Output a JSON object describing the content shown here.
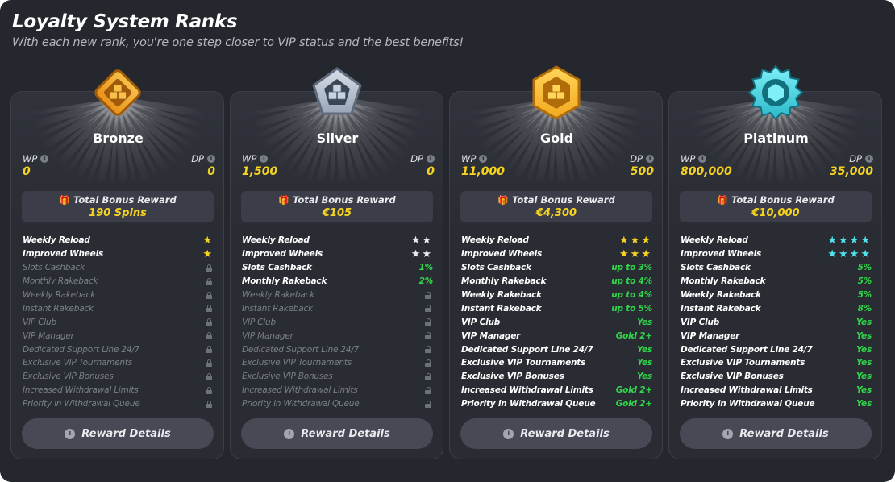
{
  "header": {
    "title": "Loyalty System Ranks",
    "subtitle": "With each new rank, you're one step closer to VIP status and the best benefits!"
  },
  "labels": {
    "wp": "WP",
    "dp": "DP",
    "bonus_title": "Total Bonus Reward",
    "details_button": "Reward Details"
  },
  "benefit_names": [
    "Weekly Reload",
    "Improved Wheels",
    "Slots Cashback",
    "Monthly Rakeback",
    "Weekly Rakeback",
    "Instant Rakeback",
    "VIP Club",
    "VIP Manager",
    "Dedicated Support Line 24/7",
    "Exclusive VIP Tournaments",
    "Exclusive VIP Bonuses",
    "Increased Withdrawal Limits",
    "Priority in Withdrawal Queue"
  ],
  "ranks": [
    {
      "name": "Bronze",
      "icon": "bronze-diamond-badge",
      "colors": {
        "main": "#e8921a",
        "light": "#f7c04a",
        "dark": "#a15a0a"
      },
      "wp": "0",
      "dp": "0",
      "bonus": "190 Spins",
      "star_color": "gold",
      "benefits": [
        {
          "stars": 1
        },
        {
          "stars": 1
        },
        {
          "locked": true
        },
        {
          "locked": true
        },
        {
          "locked": true
        },
        {
          "locked": true
        },
        {
          "locked": true
        },
        {
          "locked": true
        },
        {
          "locked": true
        },
        {
          "locked": true
        },
        {
          "locked": true
        },
        {
          "locked": true
        },
        {
          "locked": true
        }
      ]
    },
    {
      "name": "Silver",
      "icon": "silver-pentagon-badge",
      "colors": {
        "main": "#9aa7b8",
        "light": "#d7dee8",
        "dark": "#5f6b7c"
      },
      "wp": "1,500",
      "dp": "0",
      "bonus": "€105",
      "star_color": "white",
      "benefits": [
        {
          "stars": 2
        },
        {
          "stars": 2
        },
        {
          "value": "1%"
        },
        {
          "value": "2%"
        },
        {
          "locked": true
        },
        {
          "locked": true
        },
        {
          "locked": true
        },
        {
          "locked": true
        },
        {
          "locked": true
        },
        {
          "locked": true
        },
        {
          "locked": true
        },
        {
          "locked": true
        },
        {
          "locked": true
        }
      ]
    },
    {
      "name": "Gold",
      "icon": "gold-hexagon-badge",
      "colors": {
        "main": "#f2a81d",
        "light": "#ffd55a",
        "dark": "#b06c08"
      },
      "wp": "11,000",
      "dp": "500",
      "bonus": "€4,300",
      "star_color": "gold",
      "benefits": [
        {
          "stars": 3
        },
        {
          "stars": 3
        },
        {
          "value": "up to 3%"
        },
        {
          "value": "up to 4%"
        },
        {
          "value": "up to 4%"
        },
        {
          "value": "up to 5%"
        },
        {
          "value": "Yes"
        },
        {
          "value": "Gold 2+"
        },
        {
          "value": "Yes"
        },
        {
          "value": "Yes"
        },
        {
          "value": "Yes"
        },
        {
          "value": "Gold 2+"
        },
        {
          "value": "Gold 2+"
        }
      ]
    },
    {
      "name": "Platinum",
      "icon": "platinum-star-badge",
      "colors": {
        "main": "#2bb8c9",
        "light": "#7ff0f7",
        "dark": "#126f7d"
      },
      "wp": "800,000",
      "dp": "35,000",
      "bonus": "€10,000",
      "star_color": "cyan",
      "benefits": [
        {
          "stars": 4
        },
        {
          "stars": 4
        },
        {
          "value": "5%"
        },
        {
          "value": "5%"
        },
        {
          "value": "5%"
        },
        {
          "value": "8%"
        },
        {
          "value": "Yes"
        },
        {
          "value": "Yes"
        },
        {
          "value": "Yes"
        },
        {
          "value": "Yes"
        },
        {
          "value": "Yes"
        },
        {
          "value": "Yes"
        },
        {
          "value": "Yes"
        }
      ]
    }
  ]
}
